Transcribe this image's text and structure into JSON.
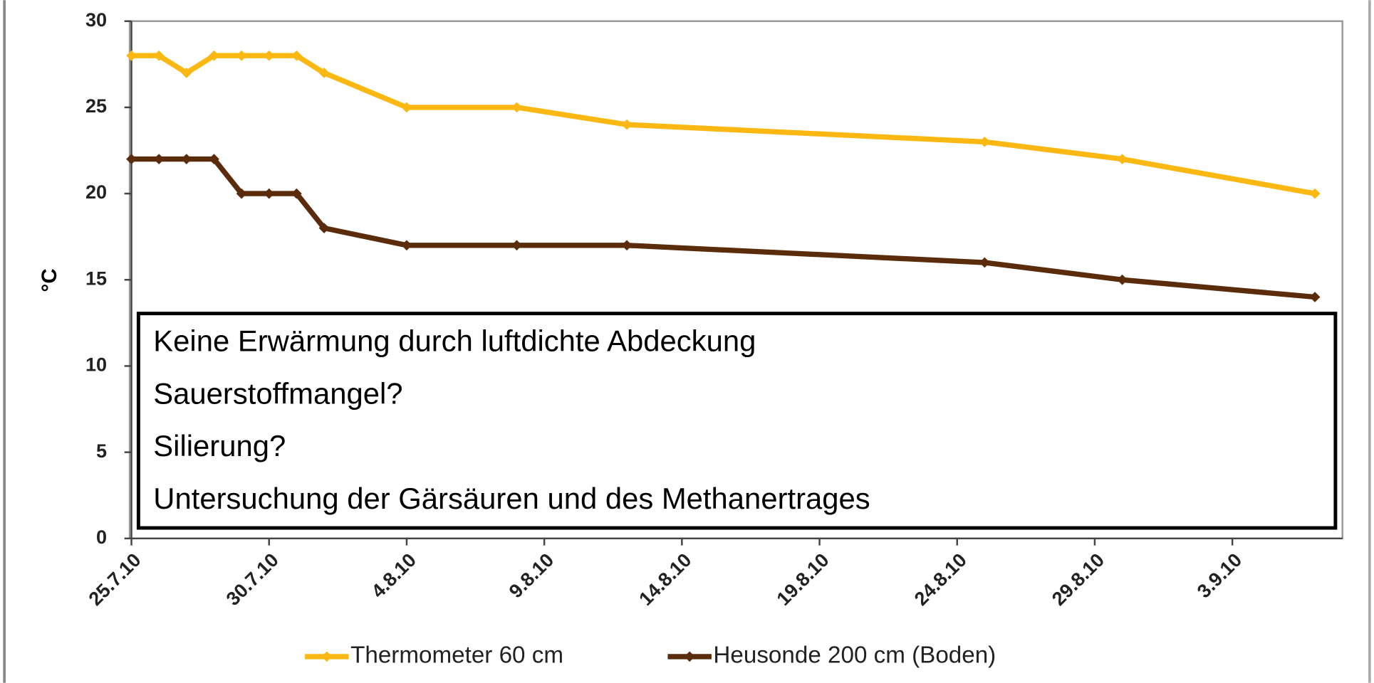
{
  "chart_data": {
    "type": "line",
    "y_label": "°C",
    "x": [
      "2010-07-25",
      "2010-07-26",
      "2010-07-27",
      "2010-07-28",
      "2010-07-29",
      "2010-07-30",
      "2010-07-31",
      "2010-08-01",
      "2010-08-04",
      "2010-08-08",
      "2010-08-12",
      "2010-08-25",
      "2010-08-30",
      "2010-09-06"
    ],
    "series": [
      {
        "name": "Thermometer 60 cm",
        "color": "#fbb812",
        "values": [
          28,
          28,
          27,
          28,
          28,
          28,
          28,
          27,
          25,
          25,
          24,
          23,
          22,
          20
        ]
      },
      {
        "name": "Heusonde 200 cm (Boden)",
        "color": "#5a2c0b",
        "values": [
          22,
          22,
          22,
          22,
          20,
          20,
          20,
          18,
          17,
          17,
          17,
          16,
          15,
          14
        ]
      }
    ],
    "xlim": [
      "2010-07-25",
      "2010-09-07"
    ],
    "xticks": [
      {
        "value": "2010-07-25",
        "label": "25.7.10"
      },
      {
        "value": "2010-07-30",
        "label": "30.7.10"
      },
      {
        "value": "2010-08-04",
        "label": "4.8.10"
      },
      {
        "value": "2010-08-09",
        "label": "9.8.10"
      },
      {
        "value": "2010-08-14",
        "label": "14.8.10"
      },
      {
        "value": "2010-08-19",
        "label": "19.8.10"
      },
      {
        "value": "2010-08-24",
        "label": "24.8.10"
      },
      {
        "value": "2010-08-29",
        "label": "29.8.10"
      },
      {
        "value": "2010-09-03",
        "label": "3.9.10"
      }
    ],
    "ylim": [
      0,
      30
    ],
    "yticks": [
      0,
      5,
      10,
      15,
      20,
      25,
      30
    ],
    "grid": false,
    "legend": "bottom",
    "annotations": [
      "Keine Erwärmung durch luftdichte Abdeckung",
      "Sauerstoffmangel?",
      "Silierung?",
      "Untersuchung der Gärsäuren und des Methanertrages"
    ]
  }
}
